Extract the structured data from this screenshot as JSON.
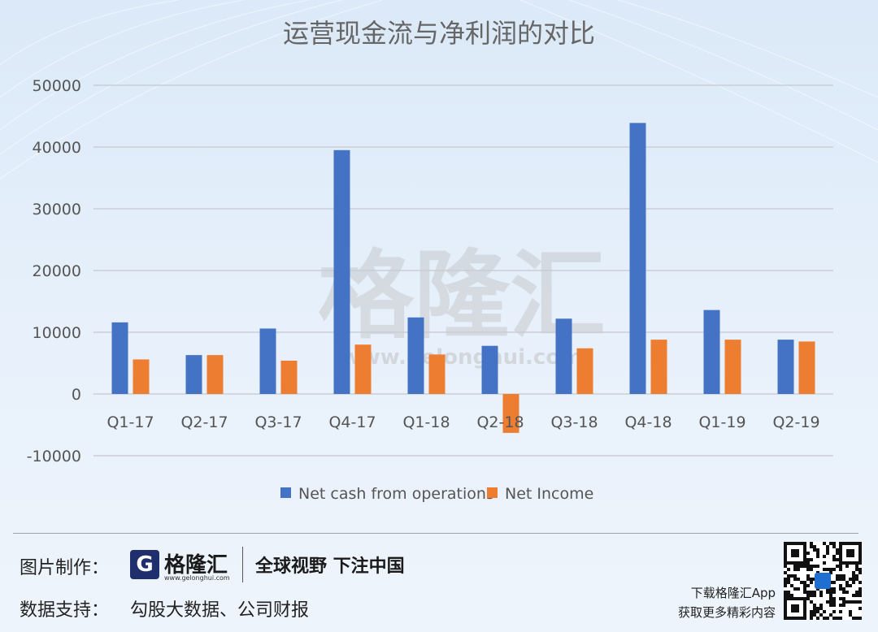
{
  "chart_data": {
    "type": "bar",
    "title": "运营现金流与净利润的对比",
    "categories": [
      "Q1-17",
      "Q2-17",
      "Q3-17",
      "Q4-17",
      "Q1-18",
      "Q2-18",
      "Q3-18",
      "Q4-18",
      "Q1-19",
      "Q2-19"
    ],
    "series": [
      {
        "name": "Net cash from operations",
        "color": "#4472c4",
        "values": [
          11600,
          6300,
          10600,
          39500,
          12400,
          7800,
          12200,
          43900,
          13600,
          8800
        ]
      },
      {
        "name": "Net Income",
        "color": "#ed7d31",
        "values": [
          5600,
          6300,
          5400,
          8000,
          6400,
          -6300,
          7400,
          8800,
          8800,
          8500
        ]
      }
    ],
    "ylim": [
      -10000,
      50000
    ],
    "yticks": [
      -10000,
      0,
      10000,
      20000,
      30000,
      40000,
      50000
    ],
    "grid": true,
    "legend_position": "bottom"
  },
  "watermark": {
    "text": "格隆汇",
    "url": "www.gelonghui.com"
  },
  "footer": {
    "made_by_label": "图片制作：",
    "logo_mark": "G",
    "logo_name": "格隆汇",
    "logo_url": "www.gelonghui.com",
    "slogan": "全球视野 下注中国",
    "data_support_label": "数据支持：",
    "data_support_value": "勾股大数据、公司财报",
    "download_line1": "下载格隆汇App",
    "download_line2": "获取更多精彩内容"
  }
}
